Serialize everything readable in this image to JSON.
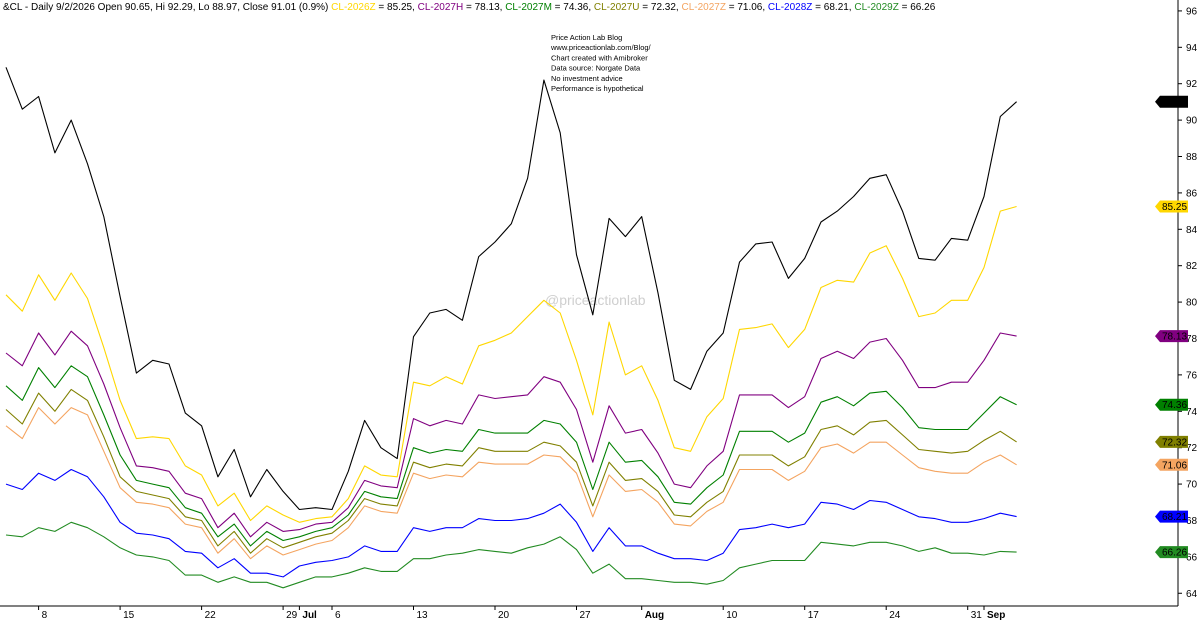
{
  "header": {
    "symbol_info": "&CL - Daily 9/2/2026 Open 90.65, Hi 92.29, Lo 88.97, Close 91.01 (0.9%)"
  },
  "notes": [
    "Price Action Lab Blog",
    "www.priceactionlab.com/Blog/",
    "Chart created with Amibroker",
    "Data source: Norgate Data",
    "No investment advice",
    "Performance is hypothetical"
  ],
  "watermark": "@priceactionlab",
  "chart_data": {
    "type": "line",
    "y_ticks": [
      64,
      66,
      68,
      70,
      72,
      74,
      76,
      78,
      80,
      82,
      84,
      86,
      88,
      90,
      92,
      94,
      96
    ],
    "ylim": [
      63.3,
      96.6
    ],
    "grid": false,
    "x_ticks": [
      {
        "label": "8",
        "bar": 2
      },
      {
        "label": "15",
        "bar": 7
      },
      {
        "label": "22",
        "bar": 12
      },
      {
        "label": "29",
        "bar": 17
      },
      {
        "label": "Jul",
        "bar": 18,
        "bold": true
      },
      {
        "label": "6",
        "bar": 20
      },
      {
        "label": "13",
        "bar": 25
      },
      {
        "label": "20",
        "bar": 30
      },
      {
        "label": "27",
        "bar": 35
      },
      {
        "label": "Aug",
        "bar": 39,
        "bold": true
      },
      {
        "label": "10",
        "bar": 44
      },
      {
        "label": "17",
        "bar": 49
      },
      {
        "label": "24",
        "bar": 54
      },
      {
        "label": "31",
        "bar": 59
      },
      {
        "label": "Sep",
        "bar": 60,
        "bold": true
      }
    ],
    "series": [
      {
        "name": "&CL",
        "color": "#000000",
        "last_label": "91.01",
        "in_header": false,
        "values": [
          92.9,
          90.6,
          91.3,
          88.2,
          90.0,
          87.6,
          84.7,
          80.3,
          76.1,
          76.8,
          76.6,
          73.9,
          73.2,
          70.4,
          71.9,
          69.3,
          70.8,
          69.6,
          68.6,
          68.7,
          68.6,
          70.7,
          73.5,
          72.0,
          71.4,
          78.1,
          79.4,
          79.6,
          79.0,
          82.5,
          83.3,
          84.3,
          86.8,
          92.2,
          89.3,
          82.6,
          79.3,
          84.6,
          83.6,
          84.7,
          80.5,
          75.7,
          75.2,
          77.3,
          78.3,
          82.2,
          83.2,
          83.3,
          81.3,
          82.4,
          84.4,
          85.0,
          85.8,
          86.8,
          87.0,
          85.0,
          82.4,
          82.3,
          83.5,
          83.4,
          85.8,
          90.2,
          91.01
        ]
      },
      {
        "name": "CL-2026Z",
        "color": "#ffd700",
        "value": "85.25",
        "last_label": "85.25",
        "in_header": true,
        "values": [
          80.4,
          79.5,
          81.5,
          80.1,
          81.6,
          80.2,
          77.5,
          74.6,
          72.5,
          72.6,
          72.5,
          71.0,
          70.5,
          68.8,
          69.5,
          68.0,
          68.8,
          68.3,
          67.9,
          68.1,
          68.2,
          69.2,
          71.0,
          70.5,
          70.4,
          75.6,
          75.4,
          75.9,
          75.5,
          77.6,
          77.9,
          78.3,
          79.2,
          80.1,
          79.4,
          76.8,
          73.8,
          78.9,
          76.0,
          76.5,
          74.6,
          72.0,
          71.8,
          73.7,
          74.7,
          78.5,
          78.6,
          78.8,
          77.5,
          78.5,
          80.8,
          81.2,
          81.1,
          82.7,
          83.1,
          81.3,
          79.2,
          79.4,
          80.1,
          80.1,
          81.9,
          85.0,
          85.25
        ]
      },
      {
        "name": "CL-2027H",
        "color": "#800080",
        "value": "78.13",
        "last_label": "78.13",
        "in_header": true,
        "values": [
          77.2,
          76.5,
          78.3,
          77.1,
          78.4,
          77.6,
          75.5,
          73.1,
          71.0,
          70.9,
          70.7,
          69.5,
          69.2,
          67.6,
          68.4,
          67.1,
          67.9,
          67.4,
          67.5,
          67.8,
          67.9,
          68.7,
          70.2,
          69.9,
          69.8,
          73.6,
          73.2,
          73.5,
          73.3,
          74.9,
          74.7,
          74.8,
          74.9,
          75.9,
          75.6,
          74.1,
          71.2,
          74.3,
          72.8,
          73.0,
          71.7,
          70.0,
          69.8,
          71.0,
          71.8,
          74.9,
          74.9,
          74.9,
          74.2,
          74.8,
          76.9,
          77.3,
          76.9,
          77.8,
          78.0,
          76.8,
          75.3,
          75.3,
          75.6,
          75.6,
          76.8,
          78.3,
          78.13
        ]
      },
      {
        "name": "CL-2027M",
        "color": "#008000",
        "value": "74.36",
        "last_label": "74.36",
        "in_header": true,
        "values": [
          75.4,
          74.6,
          76.4,
          75.3,
          76.5,
          75.9,
          73.8,
          71.6,
          70.2,
          70.0,
          69.8,
          68.7,
          68.4,
          67.1,
          67.8,
          66.6,
          67.4,
          66.9,
          67.1,
          67.4,
          67.6,
          68.3,
          69.6,
          69.3,
          69.2,
          72.0,
          71.7,
          71.9,
          71.8,
          73.0,
          72.8,
          72.8,
          72.8,
          73.5,
          73.3,
          72.3,
          69.7,
          72.3,
          71.2,
          71.3,
          70.4,
          69.0,
          68.9,
          69.8,
          70.5,
          72.9,
          72.9,
          72.9,
          72.3,
          72.8,
          74.5,
          74.8,
          74.3,
          75.0,
          75.1,
          74.2,
          73.1,
          73.0,
          73.0,
          73.0,
          73.9,
          74.8,
          74.36
        ]
      },
      {
        "name": "CL-2027U",
        "color": "#808000",
        "value": "72.32",
        "last_label": "72.32",
        "in_header": true,
        "values": [
          74.1,
          73.3,
          75.0,
          74.0,
          75.2,
          74.6,
          72.6,
          70.4,
          69.6,
          69.4,
          69.2,
          68.2,
          68.0,
          66.6,
          67.4,
          66.2,
          67.0,
          66.5,
          66.8,
          67.1,
          67.3,
          68.0,
          69.2,
          68.9,
          68.8,
          71.2,
          70.9,
          71.1,
          71.0,
          72.0,
          71.8,
          71.8,
          71.8,
          72.3,
          72.1,
          71.2,
          68.8,
          71.2,
          70.2,
          70.3,
          69.6,
          68.3,
          68.2,
          69.0,
          69.6,
          71.6,
          71.6,
          71.6,
          71.0,
          71.5,
          73.0,
          73.2,
          72.7,
          73.4,
          73.5,
          72.7,
          71.9,
          71.8,
          71.7,
          71.8,
          72.4,
          72.9,
          72.32
        ]
      },
      {
        "name": "CL-2027Z",
        "color": "#f4a460",
        "value": "71.06",
        "last_label": "71.06",
        "in_header": true,
        "values": [
          73.2,
          72.5,
          74.2,
          73.3,
          74.2,
          73.8,
          71.8,
          69.8,
          69.0,
          68.9,
          68.7,
          67.8,
          67.6,
          66.2,
          67.0,
          65.9,
          66.6,
          66.1,
          66.4,
          66.7,
          66.9,
          67.6,
          68.8,
          68.5,
          68.4,
          70.6,
          70.3,
          70.5,
          70.4,
          71.2,
          71.1,
          71.1,
          71.1,
          71.6,
          71.5,
          70.6,
          68.2,
          70.5,
          69.6,
          69.7,
          69.0,
          67.8,
          67.7,
          68.5,
          69.0,
          70.8,
          70.8,
          70.8,
          70.2,
          70.7,
          72.0,
          72.2,
          71.7,
          72.3,
          72.3,
          71.6,
          70.9,
          70.7,
          70.6,
          70.6,
          71.2,
          71.6,
          71.06
        ]
      },
      {
        "name": "CL-2028Z",
        "color": "#0000ff",
        "value": "68.21",
        "last_label": "68.21",
        "in_header": true,
        "values": [
          70.0,
          69.7,
          70.6,
          70.2,
          70.8,
          70.4,
          69.3,
          67.9,
          67.3,
          67.2,
          67.0,
          66.3,
          66.2,
          65.4,
          65.9,
          65.1,
          65.1,
          64.9,
          65.5,
          65.7,
          65.8,
          66.0,
          66.6,
          66.3,
          66.3,
          67.6,
          67.4,
          67.6,
          67.6,
          68.1,
          68.0,
          68.0,
          68.1,
          68.4,
          68.9,
          67.9,
          66.3,
          67.6,
          66.6,
          66.6,
          66.2,
          65.9,
          65.9,
          65.8,
          66.2,
          67.5,
          67.6,
          67.8,
          67.6,
          67.8,
          69.0,
          68.9,
          68.6,
          69.1,
          69.0,
          68.6,
          68.2,
          68.1,
          67.9,
          67.9,
          68.1,
          68.4,
          68.21
        ]
      },
      {
        "name": "CL-2029Z",
        "color": "#228b22",
        "value": "66.26",
        "last_label": "66.26",
        "in_header": true,
        "values": [
          67.2,
          67.1,
          67.6,
          67.4,
          67.9,
          67.6,
          67.1,
          66.5,
          66.1,
          66.0,
          65.8,
          65.0,
          65.0,
          64.6,
          64.9,
          64.6,
          64.6,
          64.3,
          64.6,
          64.9,
          64.9,
          65.1,
          65.4,
          65.2,
          65.2,
          65.9,
          65.9,
          66.1,
          66.2,
          66.4,
          66.3,
          66.2,
          66.5,
          66.7,
          67.1,
          66.4,
          65.1,
          65.6,
          64.8,
          64.8,
          64.7,
          64.6,
          64.6,
          64.5,
          64.7,
          65.4,
          65.6,
          65.8,
          65.8,
          65.8,
          66.8,
          66.7,
          66.6,
          66.8,
          66.8,
          66.6,
          66.3,
          66.5,
          66.2,
          66.2,
          66.1,
          66.3,
          66.26
        ]
      }
    ]
  }
}
